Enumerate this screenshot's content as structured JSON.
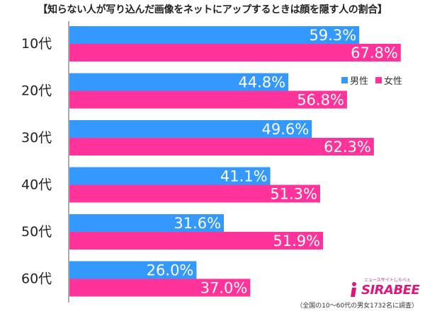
{
  "chart_data": {
    "type": "bar",
    "orientation": "horizontal",
    "title": "【知らない人が写り込んだ画像をネットにアップするときは顔を隠す人の割合】",
    "categories": [
      "10代",
      "20代",
      "30代",
      "40代",
      "50代",
      "60代"
    ],
    "series": [
      {
        "name": "男性",
        "values": [
          59.3,
          44.8,
          49.6,
          41.1,
          31.6,
          26.0
        ],
        "labels": [
          "59.3%",
          "44.8%",
          "49.6%",
          "41.1%",
          "31.6%",
          "26.0%"
        ],
        "color": "#3399ff"
      },
      {
        "name": "女性",
        "values": [
          67.8,
          56.8,
          62.3,
          51.3,
          51.9,
          37.0
        ],
        "labels": [
          "67.8%",
          "56.8%",
          "62.3%",
          "51.3%",
          "51.9%",
          "37.0%"
        ],
        "color": "#ff3399"
      }
    ],
    "xlim": [
      0,
      70
    ],
    "grid": false,
    "legend_position": "top-right"
  },
  "footnote": "（全国の10～60代の男女1732名に調査）",
  "logo": {
    "text": "SIRABEE",
    "subtext": "ニュースサイトしらべぇ",
    "color": "#e0167a"
  }
}
